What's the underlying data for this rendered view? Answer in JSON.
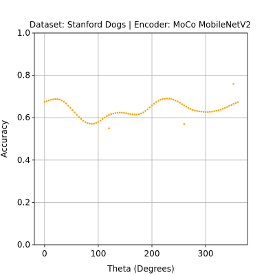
{
  "chart_data": {
    "type": "scatter",
    "title": "Dataset: Stanford Dogs | Encoder: MoCo MobileNetV2",
    "xlabel": "Theta (Degrees)",
    "ylabel": "Accuracy",
    "xlim": [
      -19,
      378
    ],
    "ylim": [
      0.0,
      1.0
    ],
    "xticks": [
      0,
      100,
      200,
      300
    ],
    "xtick_labels": [
      "0",
      "100",
      "200",
      "300"
    ],
    "yticks": [
      0.0,
      0.2,
      0.4,
      0.6,
      0.8,
      1.0
    ],
    "ytick_labels": [
      "0.0",
      "0.2",
      "0.4",
      "0.6",
      "0.8",
      "1.0"
    ],
    "grid": true,
    "point_color": "#ffa500",
    "series": [
      {
        "x": [
          0,
          4,
          8,
          12,
          16,
          20,
          24,
          28,
          32,
          36,
          40,
          44,
          48,
          52,
          56,
          60,
          64,
          68,
          72,
          76,
          80,
          84,
          88,
          92,
          96,
          100,
          104,
          108,
          112,
          116,
          120,
          124,
          128,
          132,
          136,
          140,
          144,
          148,
          152,
          156,
          160,
          164,
          168,
          172,
          176,
          180,
          184,
          188,
          192,
          196,
          200,
          204,
          208,
          212,
          216,
          220,
          224,
          228,
          232,
          236,
          240,
          244,
          248,
          252,
          256,
          260,
          264,
          268,
          272,
          276,
          280,
          284,
          288,
          292,
          296,
          300,
          304,
          308,
          312,
          316,
          320,
          324,
          328,
          332,
          336,
          340,
          344,
          348,
          352,
          356,
          360,
          120,
          260,
          352
        ],
        "y": [
          0.675,
          0.678,
          0.682,
          0.685,
          0.687,
          0.688,
          0.688,
          0.686,
          0.682,
          0.675,
          0.667,
          0.657,
          0.647,
          0.636,
          0.625,
          0.613,
          0.603,
          0.594,
          0.586,
          0.579,
          0.575,
          0.572,
          0.571,
          0.572,
          0.576,
          0.58,
          0.587,
          0.594,
          0.601,
          0.608,
          0.613,
          0.617,
          0.62,
          0.622,
          0.623,
          0.624,
          0.624,
          0.623,
          0.621,
          0.619,
          0.617,
          0.616,
          0.615,
          0.615,
          0.617,
          0.62,
          0.625,
          0.632,
          0.64,
          0.649,
          0.658,
          0.666,
          0.674,
          0.68,
          0.685,
          0.688,
          0.69,
          0.691,
          0.69,
          0.689,
          0.685,
          0.681,
          0.676,
          0.671,
          0.664,
          0.658,
          0.652,
          0.646,
          0.641,
          0.637,
          0.634,
          0.632,
          0.63,
          0.629,
          0.628,
          0.627,
          0.627,
          0.628,
          0.629,
          0.631,
          0.633,
          0.635,
          0.638,
          0.642,
          0.646,
          0.651,
          0.656,
          0.66,
          0.665,
          0.669,
          0.673,
          0.55,
          0.57,
          0.76
        ]
      }
    ]
  }
}
